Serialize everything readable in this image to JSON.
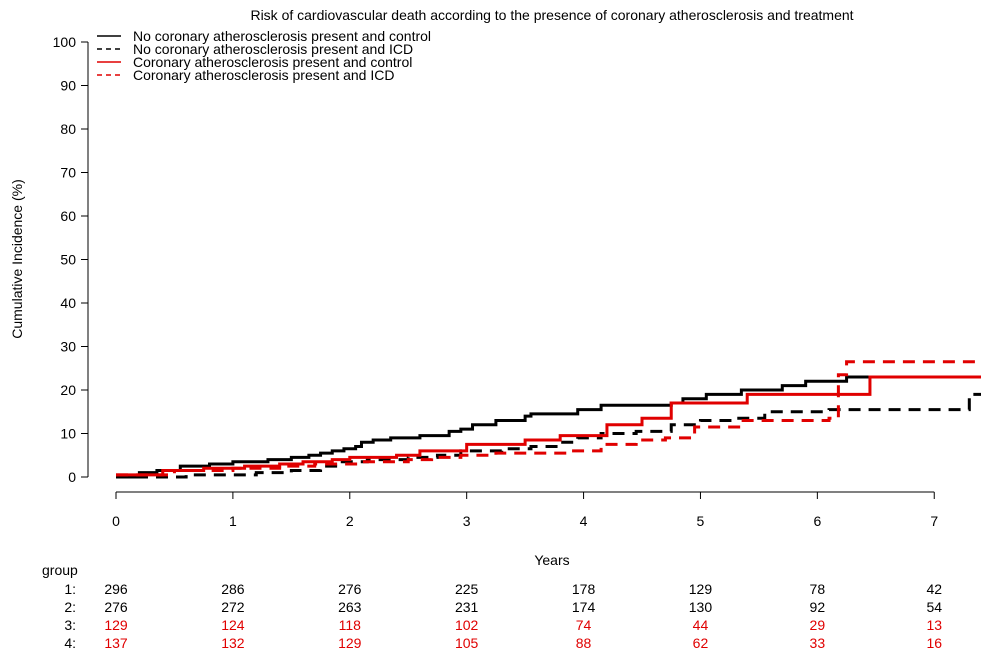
{
  "chart_data": {
    "type": "line",
    "title": "Risk of cardiovascular death according to the presence of coronary atherosclerosis and treatment",
    "xlabel": "Years",
    "ylabel": "Cumulative Incidence (%)",
    "xlim": [
      0,
      7.4
    ],
    "ylim": [
      0,
      100
    ],
    "xticks": [
      0,
      1,
      2,
      3,
      4,
      5,
      6,
      7
    ],
    "yticks": [
      0,
      10,
      20,
      30,
      40,
      50,
      60,
      70,
      80,
      90,
      100
    ],
    "grid": false,
    "legend_position": "top-left",
    "step": true,
    "series": [
      {
        "name": "No coronary atherosclerosis present and control",
        "color": "#000000",
        "dash": "solid",
        "x": [
          0,
          0.2,
          0.35,
          0.55,
          0.8,
          1.0,
          1.3,
          1.5,
          1.65,
          1.75,
          1.85,
          1.95,
          2.05,
          2.1,
          2.2,
          2.35,
          2.6,
          2.85,
          2.95,
          3.05,
          3.25,
          3.5,
          3.55,
          3.95,
          4.15,
          4.75,
          4.85,
          5.05,
          5.35,
          5.7,
          5.9,
          6.25,
          7.4
        ],
        "y": [
          0,
          1.0,
          1.5,
          2.5,
          3.0,
          3.5,
          4.0,
          4.5,
          5.0,
          5.5,
          6.0,
          6.5,
          7.0,
          8.0,
          8.5,
          9.0,
          9.5,
          10.5,
          11.0,
          12.0,
          13.0,
          14.0,
          14.5,
          15.5,
          16.5,
          17.0,
          18.0,
          19.0,
          20.0,
          21.0,
          22.0,
          23.0,
          23.0
        ]
      },
      {
        "name": "No coronary atherosclerosis present and ICD",
        "color": "#000000",
        "dash": "dashed",
        "x": [
          0,
          0.6,
          1.2,
          1.5,
          1.75,
          1.9,
          2.15,
          2.5,
          2.75,
          2.95,
          3.3,
          3.55,
          3.8,
          3.95,
          4.15,
          4.45,
          4.75,
          5.0,
          5.3,
          5.55,
          6.1,
          7.3,
          7.4
        ],
        "y": [
          0,
          0.5,
          1.0,
          1.5,
          2.5,
          3.5,
          4.0,
          4.5,
          5.0,
          6.0,
          6.5,
          7.0,
          8.0,
          9.0,
          10.0,
          10.5,
          12.0,
          13.0,
          13.5,
          15.0,
          15.5,
          19.0,
          19.0
        ]
      },
      {
        "name": "Coronary atherosclerosis present and control",
        "color": "#e00000",
        "dash": "solid",
        "x": [
          0,
          0.4,
          0.75,
          1.1,
          1.4,
          1.6,
          1.85,
          2.0,
          2.4,
          2.6,
          3.0,
          3.5,
          3.8,
          4.2,
          4.5,
          4.75,
          5.4,
          6.45,
          7.4
        ],
        "y": [
          0.5,
          1.5,
          2.0,
          2.5,
          3.0,
          3.5,
          4.0,
          4.5,
          5.0,
          6.0,
          7.5,
          8.5,
          9.5,
          12.0,
          13.5,
          17.0,
          19.0,
          23.0,
          23.0
        ]
      },
      {
        "name": "Coronary atherosclerosis present and ICD",
        "color": "#e00000",
        "dash": "dashed",
        "x": [
          0,
          0.5,
          1.0,
          1.4,
          1.7,
          2.1,
          2.5,
          2.7,
          2.95,
          3.25,
          3.9,
          4.15,
          4.45,
          4.7,
          4.95,
          5.35,
          6.1,
          6.18,
          6.25,
          7.4
        ],
        "y": [
          0.5,
          1.5,
          2.0,
          2.5,
          3.0,
          3.5,
          4.0,
          4.5,
          5.0,
          5.5,
          6.0,
          7.5,
          8.5,
          9.0,
          11.5,
          13.0,
          13.5,
          23.5,
          26.5,
          26.5
        ]
      }
    ]
  },
  "risk_table": {
    "header": "group",
    "times": [
      0,
      1,
      2,
      3,
      4,
      5,
      6,
      7
    ],
    "rows": [
      {
        "label": "1:",
        "color": "#000000",
        "values": [
          296,
          286,
          276,
          225,
          178,
          129,
          78,
          42
        ]
      },
      {
        "label": "2:",
        "color": "#000000",
        "values": [
          276,
          272,
          263,
          231,
          174,
          130,
          92,
          54
        ]
      },
      {
        "label": "3:",
        "color": "#e00000",
        "values": [
          129,
          124,
          118,
          102,
          74,
          44,
          29,
          13
        ]
      },
      {
        "label": "4:",
        "color": "#e00000",
        "values": [
          137,
          132,
          129,
          105,
          88,
          62,
          33,
          16
        ]
      }
    ]
  }
}
